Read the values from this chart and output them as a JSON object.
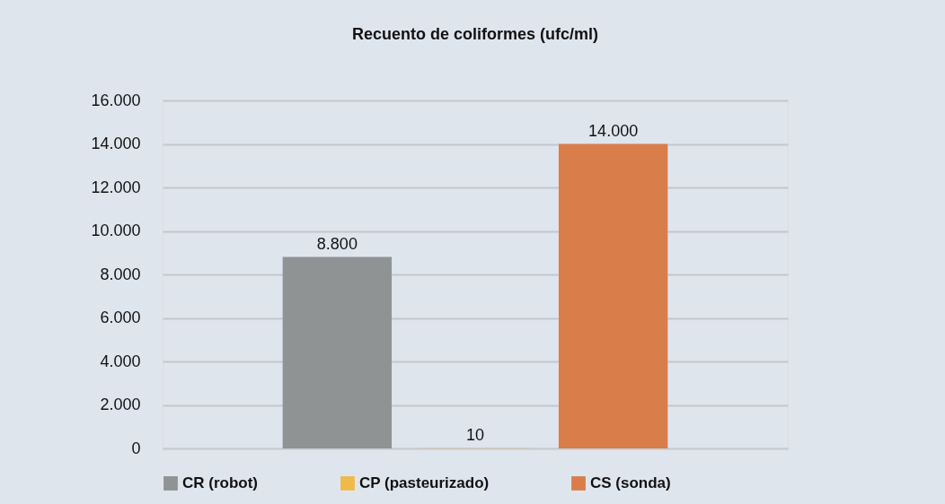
{
  "chart_data": {
    "type": "bar",
    "title": "Recuento de coliformes (ufc/ml)",
    "categories": [
      null
    ],
    "series": [
      {
        "name": "CR (robot)",
        "color": "#8f9393",
        "values": [
          8800
        ],
        "value_labels": [
          "8.800"
        ]
      },
      {
        "name": "CP (pasteurizado)",
        "color": "#f0b94b",
        "values": [
          10
        ],
        "value_labels": [
          "10"
        ]
      },
      {
        "name": "CS (sonda)",
        "color": "#d97d4a",
        "values": [
          14000
        ],
        "value_labels": [
          "14.000"
        ]
      }
    ],
    "ylim": [
      0,
      16000
    ],
    "yticks": [
      {
        "value": 0,
        "label": "0"
      },
      {
        "value": 2000,
        "label": "2.000"
      },
      {
        "value": 4000,
        "label": "4.000"
      },
      {
        "value": 6000,
        "label": "6.000"
      },
      {
        "value": 8000,
        "label": "8.000"
      },
      {
        "value": 10000,
        "label": "10.000"
      },
      {
        "value": 12000,
        "label": "12.000"
      },
      {
        "value": 14000,
        "label": "14.000"
      },
      {
        "value": 16000,
        "label": "16.000"
      }
    ],
    "grid": "y",
    "legend": "bottom",
    "tick_labels": "y"
  }
}
